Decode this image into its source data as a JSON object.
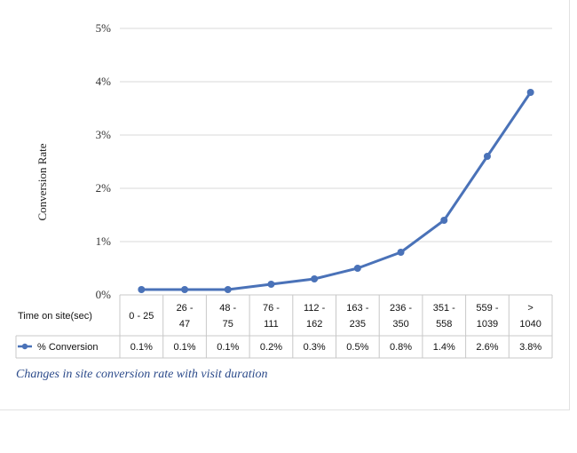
{
  "caption": "Changes in site conversion rate with visit duration",
  "chart_data": {
    "type": "line",
    "ylabel": "Conversion Rate",
    "xlabel": "Time on site(sec)",
    "ylim": [
      0,
      5
    ],
    "yticks": [
      "0%",
      "1%",
      "2%",
      "3%",
      "4%",
      "5%"
    ],
    "grid": true,
    "categories": [
      [
        "0  -  25"
      ],
      [
        "26  -",
        "47"
      ],
      [
        "48  -",
        "75"
      ],
      [
        "76 -",
        "111"
      ],
      [
        "112  -",
        "162"
      ],
      [
        "163 -",
        "235"
      ],
      [
        "236  -",
        "350"
      ],
      [
        "351  -",
        "558"
      ],
      [
        "559  -",
        "1039"
      ],
      [
        ">",
        "1040"
      ]
    ],
    "series": [
      {
        "name": "% Conversion",
        "color": "#4a72b8",
        "values": [
          0.1,
          0.1,
          0.1,
          0.2,
          0.3,
          0.5,
          0.8,
          1.4,
          2.6,
          3.8
        ],
        "value_labels": [
          "0.1%",
          "0.1%",
          "0.1%",
          "0.2%",
          "0.3%",
          "0.5%",
          "0.8%",
          "1.4%",
          "2.6%",
          "3.8%"
        ]
      }
    ]
  }
}
